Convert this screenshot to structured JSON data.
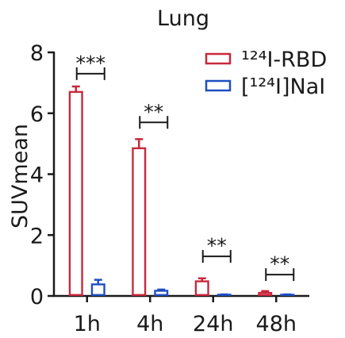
{
  "chart_data": {
    "type": "bar",
    "title": "Lung",
    "xlabel": "",
    "ylabel": "SUVmean",
    "ylim": [
      0,
      8
    ],
    "yticks": [
      0,
      2,
      4,
      6,
      8
    ],
    "categories": [
      "1h",
      "4h",
      "24h",
      "48h"
    ],
    "series": [
      {
        "name": "¹²⁴I-RBD",
        "values": [
          6.7,
          4.85,
          0.48,
          0.1
        ],
        "errors": [
          0.18,
          0.3,
          0.1,
          0.06
        ],
        "color": "#c8283c"
      },
      {
        "name": "[¹²⁴I]NaI",
        "values": [
          0.38,
          0.17,
          0.04,
          0.04
        ],
        "errors": [
          0.15,
          0.04,
          0.01,
          0.01
        ],
        "color": "#1f4fc0"
      }
    ],
    "significance": [
      {
        "category": "1h",
        "label": "***",
        "level": 7.3
      },
      {
        "category": "4h",
        "label": "**",
        "level": 5.7
      },
      {
        "category": "24h",
        "label": "**",
        "level": 1.3
      },
      {
        "category": "48h",
        "label": "**",
        "level": 0.7
      }
    ],
    "legend_position": "top-right",
    "grid": false
  }
}
